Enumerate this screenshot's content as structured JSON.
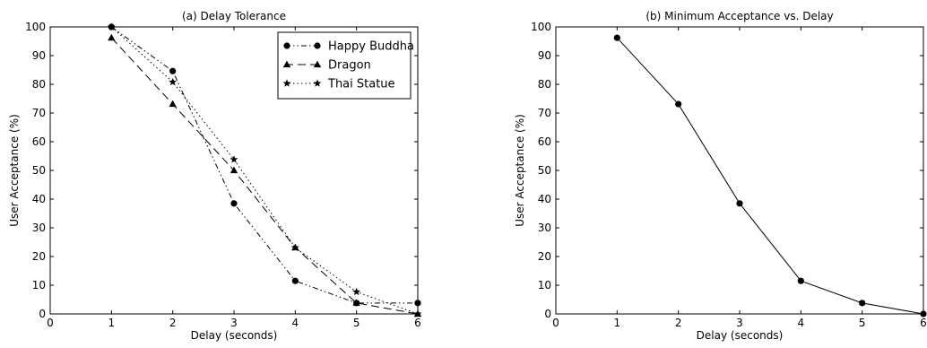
{
  "chart_data": [
    {
      "type": "line",
      "title": "(a) Delay Tolerance",
      "xlabel": "Delay (seconds)",
      "ylabel": "User Acceptance (%)",
      "xlim": [
        0,
        6
      ],
      "ylim": [
        0,
        100
      ],
      "xticks": [
        0,
        1,
        2,
        3,
        4,
        5,
        6
      ],
      "yticks": [
        0,
        10,
        20,
        30,
        40,
        50,
        60,
        70,
        80,
        90,
        100
      ],
      "grid": false,
      "legend": "top-right",
      "x": [
        1,
        2,
        3,
        4,
        5,
        6
      ],
      "series": [
        {
          "name": "Happy Buddha",
          "marker": "circle",
          "dash": "dash-dot-dot",
          "values": [
            100,
            84.6,
            38.5,
            11.5,
            3.8,
            3.8
          ]
        },
        {
          "name": "Dragon",
          "marker": "triangle",
          "dash": "dashed",
          "values": [
            96.2,
            73.1,
            50,
            23.1,
            3.8,
            0
          ]
        },
        {
          "name": "Thai Statue",
          "marker": "star",
          "dash": "dotted",
          "values": [
            100,
            80.8,
            53.8,
            23.1,
            7.7,
            0
          ]
        }
      ]
    },
    {
      "type": "line",
      "title": "(b) Minimum Acceptance vs. Delay",
      "xlabel": "Delay (seconds)",
      "ylabel": "User Acceptance (%)",
      "xlim": [
        0,
        6
      ],
      "ylim": [
        0,
        100
      ],
      "xticks": [
        0,
        1,
        2,
        3,
        4,
        5,
        6
      ],
      "yticks": [
        0,
        10,
        20,
        30,
        40,
        50,
        60,
        70,
        80,
        90,
        100
      ],
      "grid": false,
      "x": [
        1,
        2,
        3,
        4,
        5,
        6
      ],
      "series": [
        {
          "marker": "circle",
          "dash": "solid",
          "values": [
            96.2,
            73.1,
            38.5,
            11.5,
            3.8,
            0
          ]
        }
      ]
    }
  ]
}
